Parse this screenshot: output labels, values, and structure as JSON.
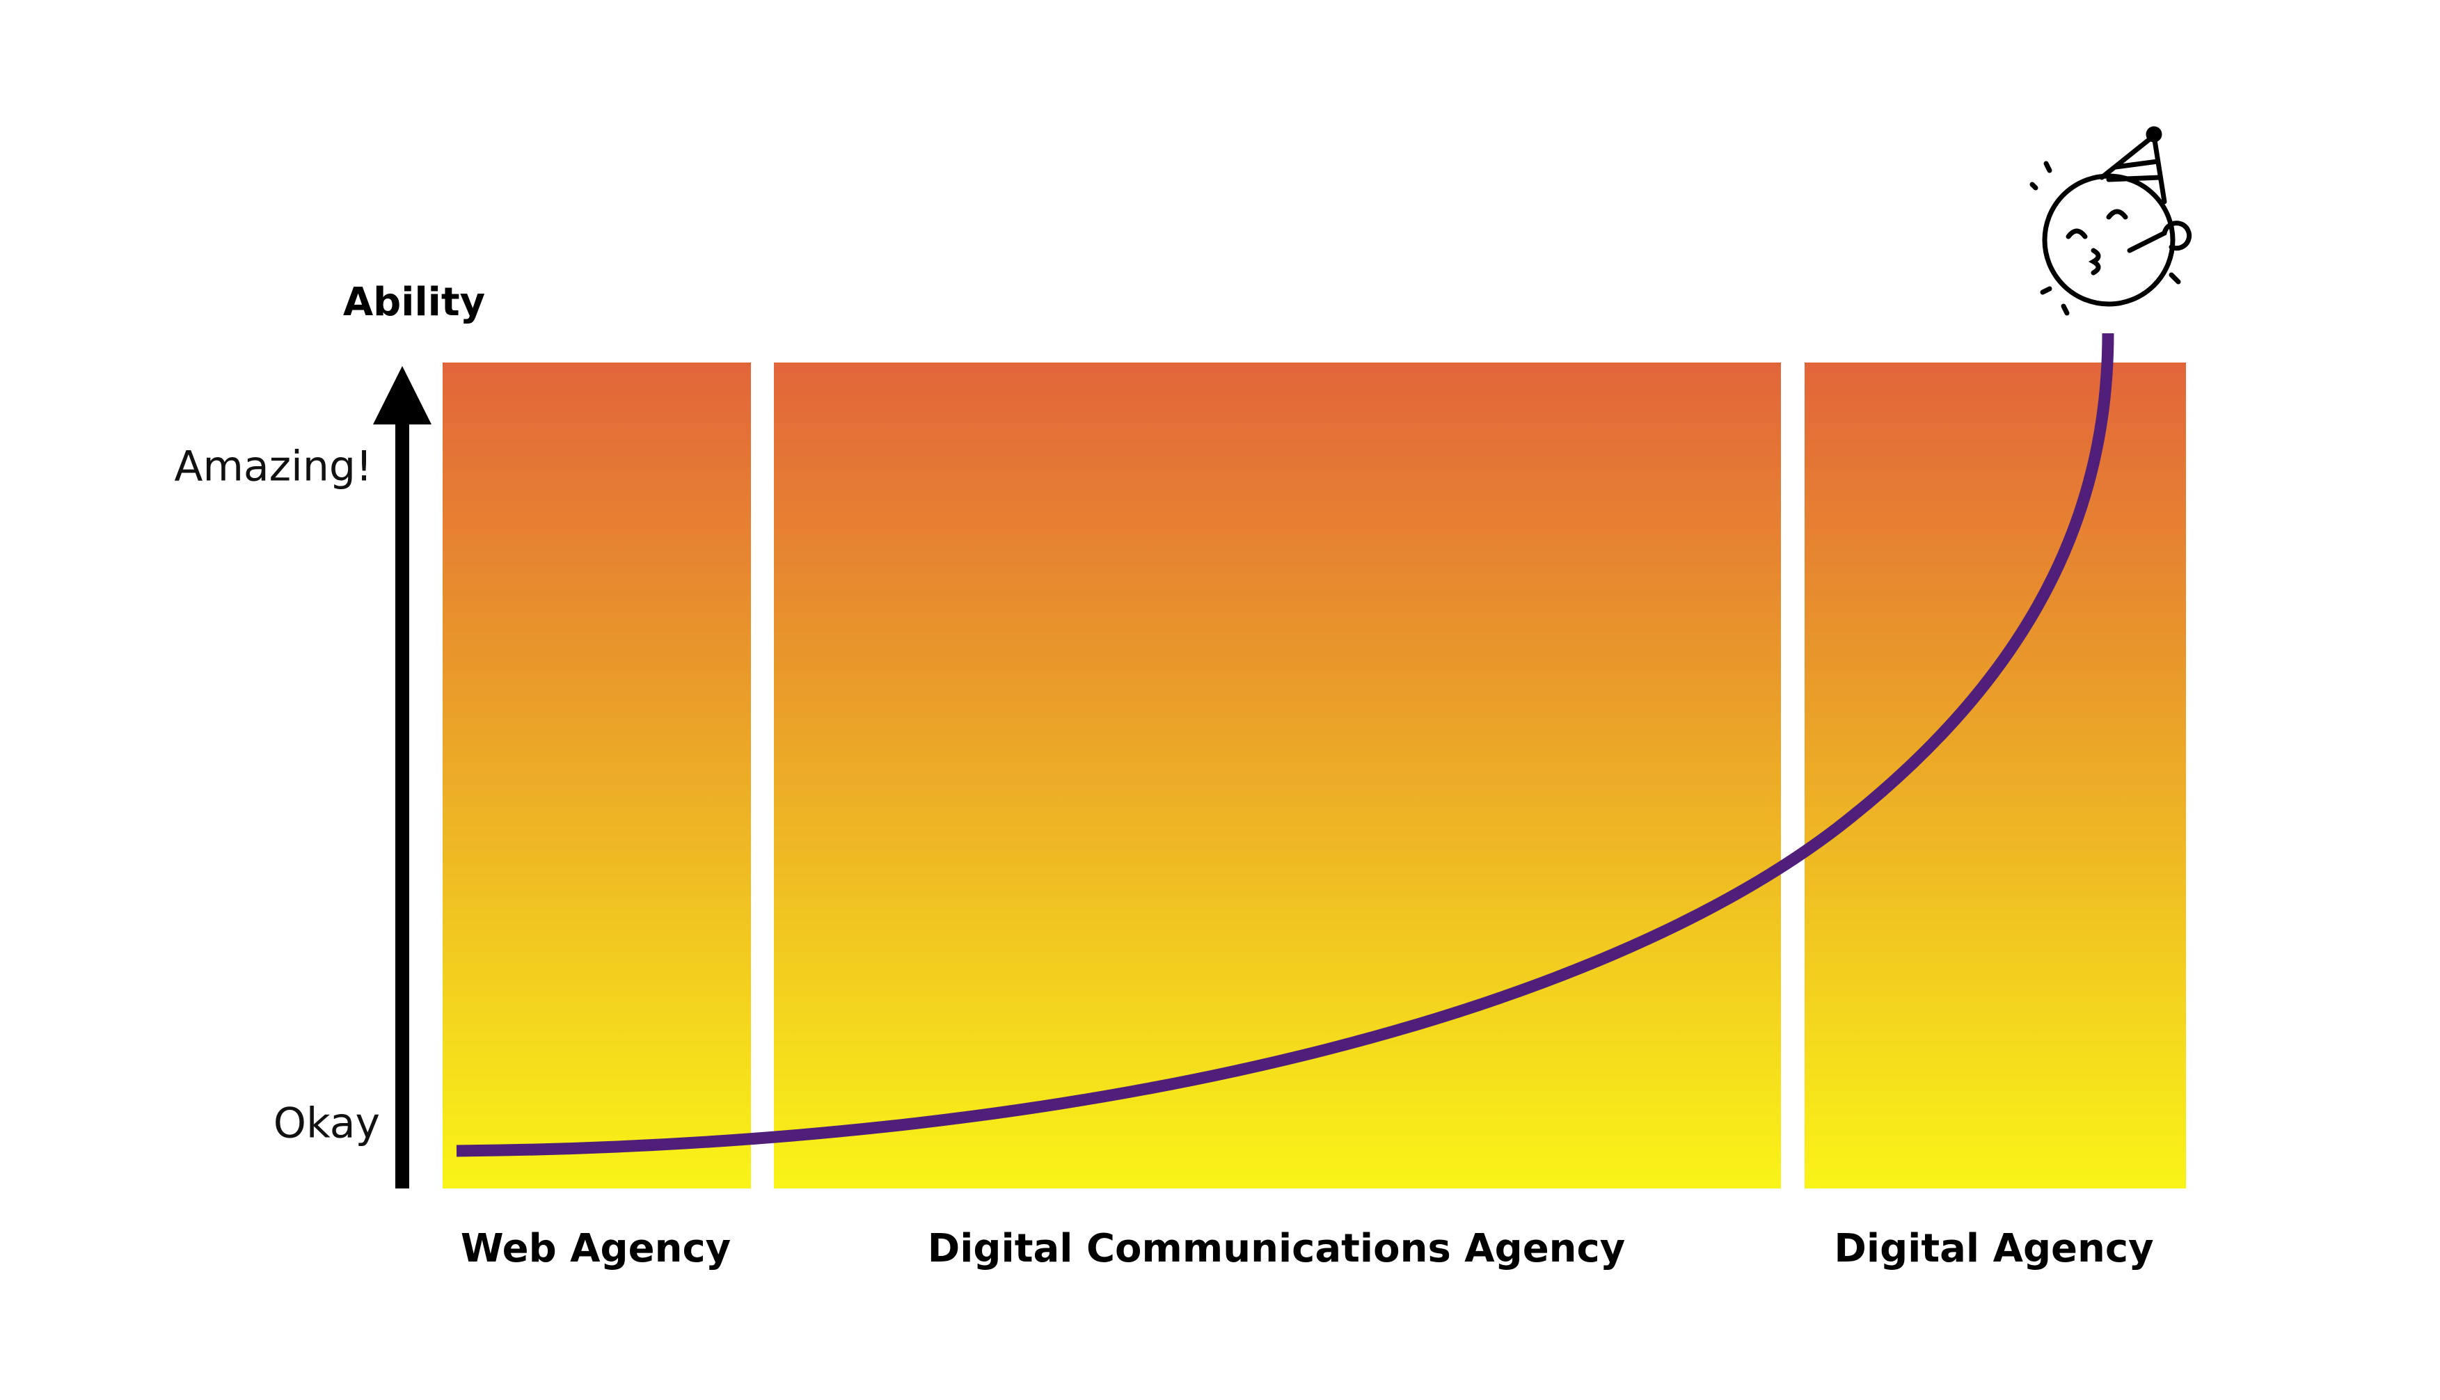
{
  "axis": {
    "label": "Ability",
    "top_label": "Amazing!",
    "bottom_label": "Okay"
  },
  "phases": [
    "Web Agency",
    "Digital Communications Agency",
    "Digital Agency"
  ]
}
